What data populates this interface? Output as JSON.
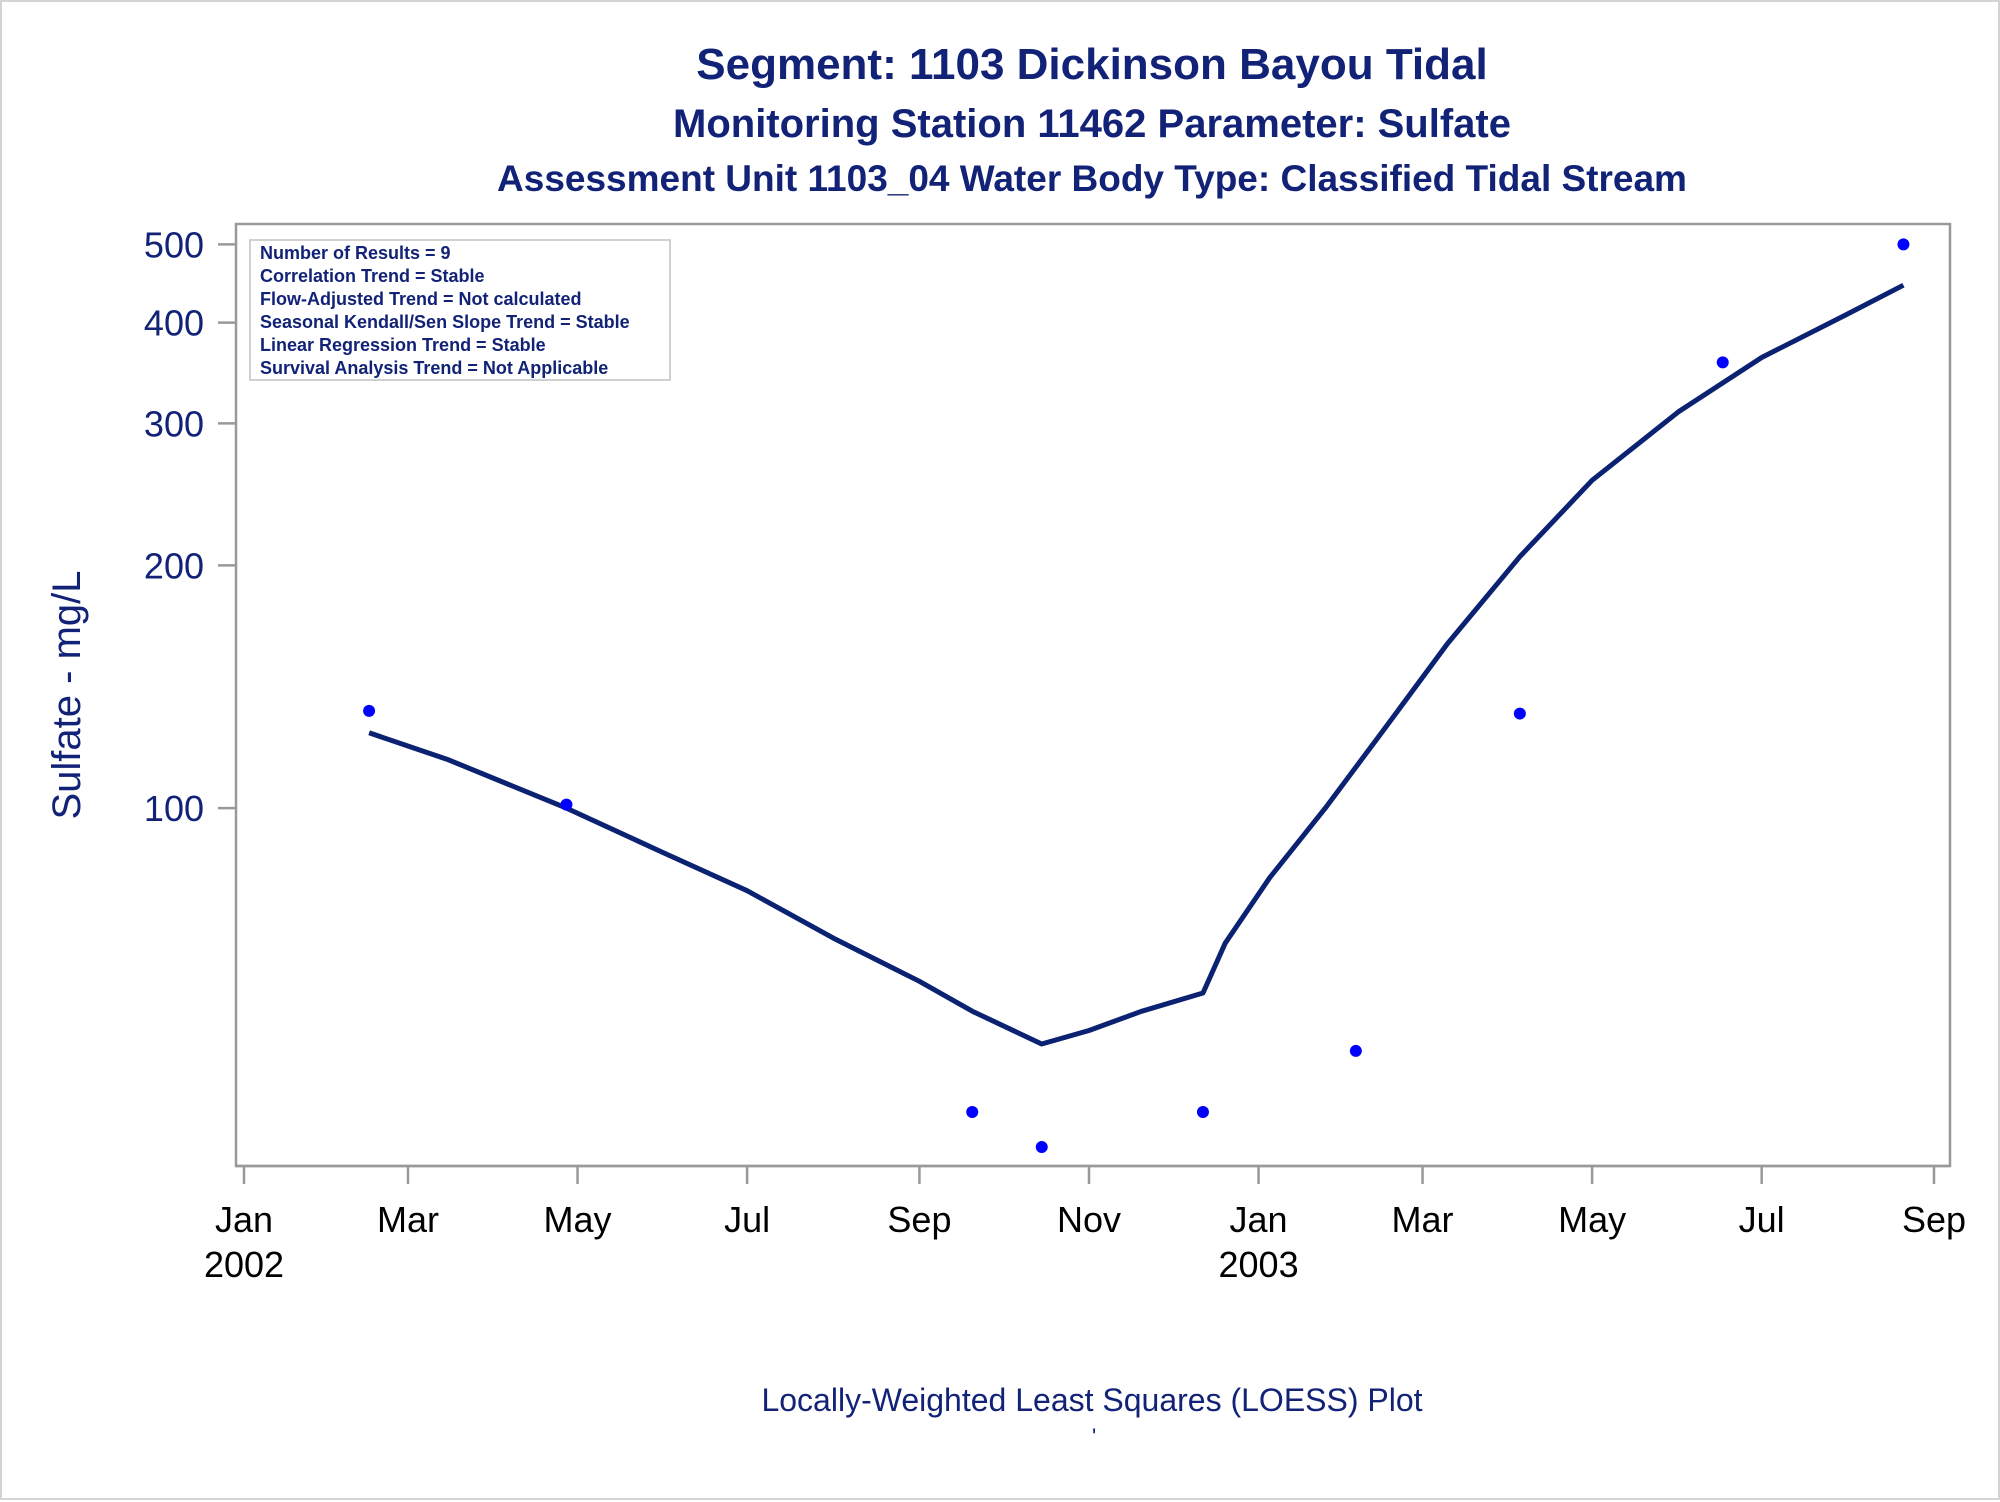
{
  "titles": {
    "line1": "Segment: 1103  Dickinson Bayou Tidal",
    "line2": "Monitoring Station 11462 Parameter: Sulfate",
    "line3": "Assessment Unit 1103_04   Water Body Type: Classified Tidal Stream"
  },
  "footnote": "Locally-Weighted Least Squares (LOESS) Plot",
  "footnote_mark": "'",
  "colors": {
    "text": "#112277",
    "points": "#0000ff",
    "loess_line": "#0b2272",
    "axis": "#999999"
  },
  "chart_data": {
    "type": "scatter",
    "ylabel": "Sulfate - mg/L",
    "yscale": "log",
    "ylim": [
      36,
      530
    ],
    "yticks": [
      100,
      200,
      300,
      400,
      500
    ],
    "xlim": [
      "2002-01-01",
      "2003-09-01"
    ],
    "xticks": [
      {
        "date": "2002-01-01",
        "label": "Jan",
        "year": "2002"
      },
      {
        "date": "2002-03-01",
        "label": "Mar",
        "year": ""
      },
      {
        "date": "2002-05-01",
        "label": "May",
        "year": ""
      },
      {
        "date": "2002-07-01",
        "label": "Jul",
        "year": ""
      },
      {
        "date": "2002-09-01",
        "label": "Sep",
        "year": ""
      },
      {
        "date": "2002-11-01",
        "label": "Nov",
        "year": ""
      },
      {
        "date": "2003-01-01",
        "label": "Jan",
        "year": "2003"
      },
      {
        "date": "2003-03-01",
        "label": "Mar",
        "year": ""
      },
      {
        "date": "2003-05-01",
        "label": "May",
        "year": ""
      },
      {
        "date": "2003-07-01",
        "label": "Jul",
        "year": ""
      },
      {
        "date": "2003-09-01",
        "label": "Sep",
        "year": ""
      }
    ],
    "stats_box": [
      "Number of Results = 9",
      "Correlation Trend = Stable",
      "Flow-Adjusted Trend = Not calculated",
      "Seasonal Kendall/Sen Slope Trend = Stable",
      "Linear Regression Trend = Stable",
      "Survival Analysis Trend = Not Applicable"
    ],
    "points": [
      {
        "x": "2002-02-15",
        "y": 132
      },
      {
        "x": "2002-04-27",
        "y": 101
      },
      {
        "x": "2002-09-20",
        "y": 42
      },
      {
        "x": "2002-10-15",
        "y": 38
      },
      {
        "x": "2002-12-12",
        "y": 42
      },
      {
        "x": "2003-02-05",
        "y": 50
      },
      {
        "x": "2003-04-05",
        "y": 131
      },
      {
        "x": "2003-06-17",
        "y": 357
      },
      {
        "x": "2003-08-21",
        "y": 500
      }
    ],
    "loess": [
      {
        "x": "2002-02-15",
        "y": 124
      },
      {
        "x": "2002-03-15",
        "y": 115
      },
      {
        "x": "2002-04-27",
        "y": 100
      },
      {
        "x": "2002-06-01",
        "y": 88
      },
      {
        "x": "2002-07-01",
        "y": 79
      },
      {
        "x": "2002-08-01",
        "y": 69
      },
      {
        "x": "2002-09-01",
        "y": 61
      },
      {
        "x": "2002-09-20",
        "y": 56
      },
      {
        "x": "2002-10-15",
        "y": 51
      },
      {
        "x": "2002-11-01",
        "y": 53
      },
      {
        "x": "2002-11-20",
        "y": 56
      },
      {
        "x": "2002-12-12",
        "y": 59
      },
      {
        "x": "2002-12-20",
        "y": 68
      },
      {
        "x": "2003-01-05",
        "y": 82
      },
      {
        "x": "2003-01-25",
        "y": 100
      },
      {
        "x": "2003-02-15",
        "y": 125
      },
      {
        "x": "2003-03-10",
        "y": 160
      },
      {
        "x": "2003-04-05",
        "y": 205
      },
      {
        "x": "2003-05-01",
        "y": 255
      },
      {
        "x": "2003-06-01",
        "y": 310
      },
      {
        "x": "2003-07-01",
        "y": 362
      },
      {
        "x": "2003-08-01",
        "y": 410
      },
      {
        "x": "2003-08-21",
        "y": 445
      }
    ]
  }
}
